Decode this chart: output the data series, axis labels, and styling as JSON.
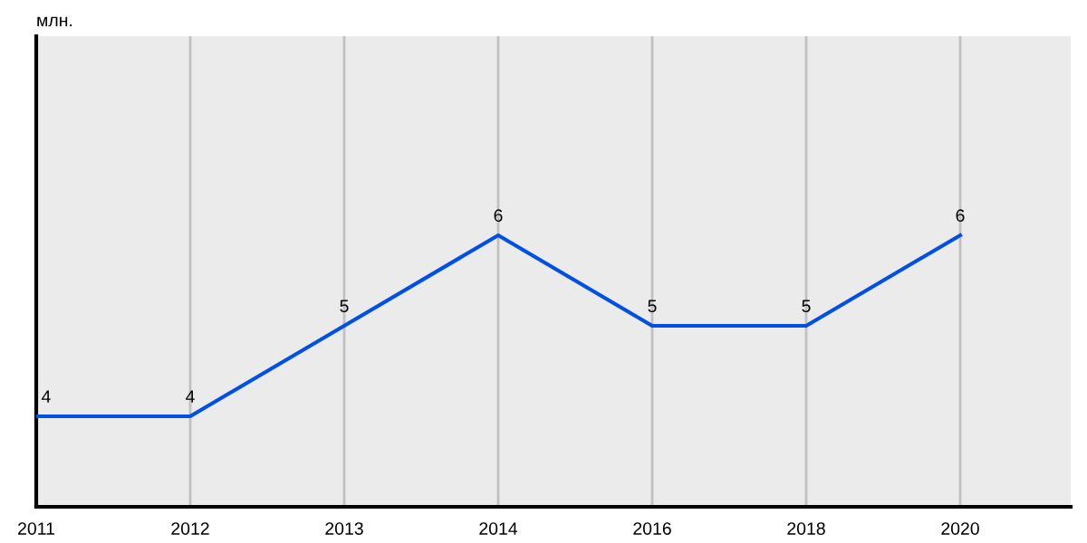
{
  "chart_data": {
    "type": "line",
    "ylabel": "млн.",
    "categories": [
      "2011",
      "2012",
      "2013",
      "2014",
      "2016",
      "2018",
      "2020"
    ],
    "series": [
      {
        "color": "#0050e6",
        "values": [
          4,
          4,
          5,
          6,
          5,
          5,
          6
        ]
      }
    ],
    "ylim": [
      3,
      8.2
    ],
    "tick_labels": "x",
    "grid": "x",
    "data_labels": true,
    "marker": "none",
    "line_style": "solid"
  }
}
